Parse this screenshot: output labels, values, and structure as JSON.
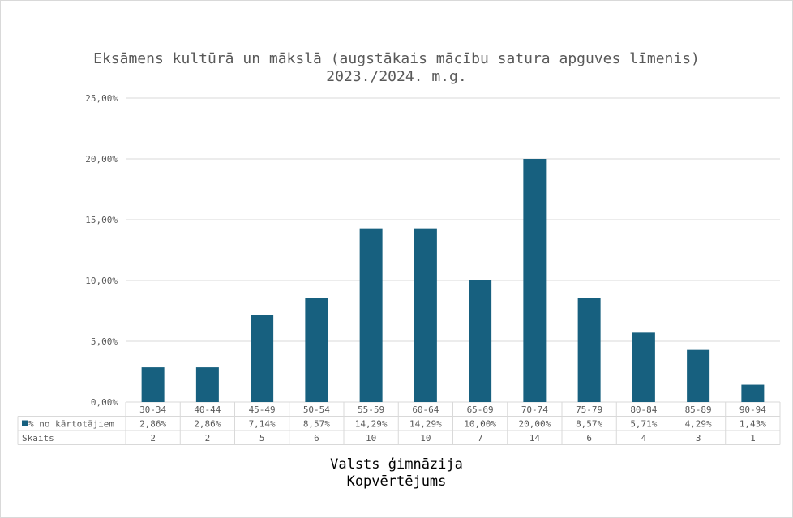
{
  "chart_data": {
    "type": "bar",
    "title_line1": "Eksāmens kultūrā un mākslā (augstākais mācību satura apguves līmenis)",
    "title_line2": "2023./2024. m.g.",
    "caption_line1": "Valsts ģimnāzija",
    "caption_line2": "Kopvērtējums",
    "categories": [
      "30-34",
      "40-44",
      "45-49",
      "50-54",
      "55-59",
      "60-64",
      "65-69",
      "70-74",
      "75-79",
      "80-84",
      "85-89",
      "90-94"
    ],
    "series": [
      {
        "name": "% no kārtotājiem",
        "values": [
          2.86,
          2.86,
          7.14,
          8.57,
          14.29,
          14.29,
          10.0,
          20.0,
          8.57,
          5.71,
          4.29,
          1.43
        ],
        "labels": [
          "2,86%",
          "2,86%",
          "7,14%",
          "8,57%",
          "14,29%",
          "14,29%",
          "10,00%",
          "20,00%",
          "8,57%",
          "5,71%",
          "4,29%",
          "1,43%"
        ],
        "color": "#17607f"
      }
    ],
    "table_rows": [
      {
        "name": "Skaits",
        "values": [
          "2",
          "2",
          "5",
          "6",
          "10",
          "10",
          "7",
          "14",
          "6",
          "4",
          "3",
          "1"
        ]
      }
    ],
    "yticks": [
      0,
      5,
      10,
      15,
      20,
      25
    ],
    "ytick_labels": [
      "0,00%",
      "5,00%",
      "10,00%",
      "15,00%",
      "20,00%",
      "25,00%"
    ],
    "ylim": [
      0,
      25
    ],
    "grid": true,
    "legend": "data-table"
  }
}
